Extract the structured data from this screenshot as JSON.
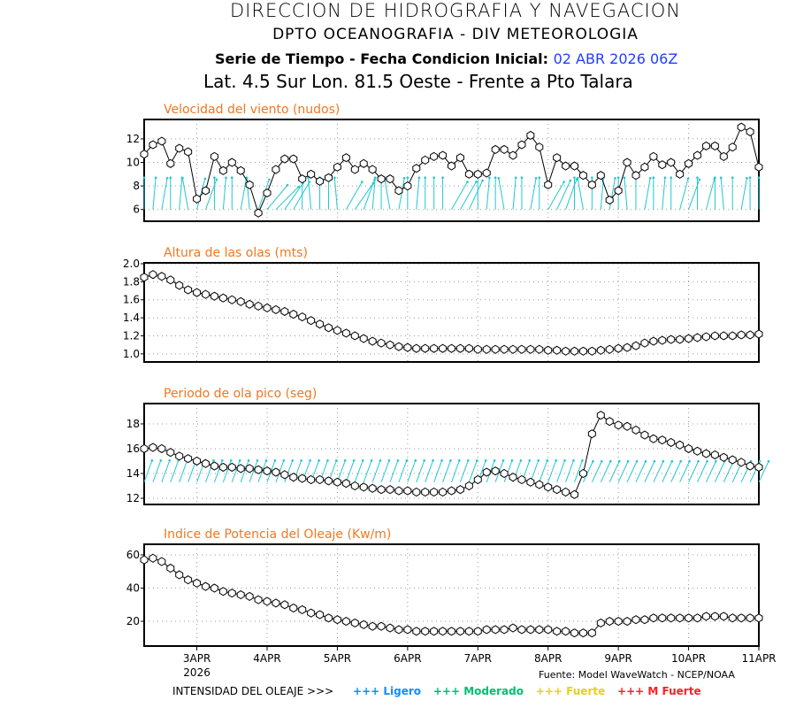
{
  "header": {
    "line1": "DIRECCION DE HIDROGRAFIA Y NAVEGACION",
    "line2": "DPTO OCEANOGRAFIA - DIV METEOROLOGIA",
    "line3_label": "Serie de Tiempo - Fecha Condicion Inicial:",
    "line3_date": "02 ABR 2026 06Z",
    "line4": "Lat. 4.5 Sur  Lon. 81.5 Oeste - Frente a Pto Talara"
  },
  "footer": {
    "source": "Fuente: Model WaveWatch - NCEP/NOAA",
    "legend_label": "INTENSIDAD DEL OLEAJE >>>",
    "legend": [
      {
        "label": "+++ Ligero",
        "color": "#0a90ff"
      },
      {
        "label": "+++ Moderado",
        "color": "#00c070"
      },
      {
        "label": "+++ Fuerte",
        "color": "#e6d020"
      },
      {
        "label": "+++ M Fuerte",
        "color": "#ff2020"
      }
    ]
  },
  "colors": {
    "title": "#f07820",
    "arrow": "#20c8d0",
    "line": "#000000"
  },
  "chart_data": [
    {
      "type": "line",
      "title": "Velocidad del viento (nudos)",
      "x_start": "2026-04-02 06Z",
      "x_step_hours": 3,
      "ylim": [
        5.0,
        13.65
      ],
      "yticks": [
        6,
        8,
        10,
        12
      ],
      "ytick_labels": [
        "6",
        "8",
        "10",
        "12"
      ],
      "values": [
        10.7,
        11.5,
        11.8,
        9.9,
        11.2,
        10.9,
        6.9,
        7.6,
        10.5,
        9.3,
        10.0,
        9.3,
        8.1,
        5.7,
        7.4,
        9.4,
        10.3,
        10.3,
        8.6,
        9.0,
        8.4,
        8.7,
        9.6,
        10.4,
        9.4,
        9.9,
        9.4,
        8.6,
        8.6,
        7.6,
        8.0,
        9.5,
        10.2,
        10.5,
        10.6,
        9.7,
        10.4,
        9.0,
        9.0,
        9.1,
        11.1,
        11.1,
        10.6,
        11.5,
        12.3,
        11.3,
        8.1,
        10.4,
        9.7,
        9.7,
        8.9,
        8.1,
        8.9,
        6.8,
        7.6,
        10.0,
        8.9,
        9.6,
        10.5,
        9.8,
        10.0,
        9.0,
        9.9,
        10.6,
        11.4,
        11.4,
        10.5,
        11.3,
        13.0,
        12.6,
        9.6
      ],
      "arrows": {
        "base": 6.0,
        "tilt_deg": [
          0,
          5,
          10,
          0,
          5,
          -10,
          15,
          20,
          0,
          5,
          0,
          10,
          -5,
          20,
          40,
          45,
          35,
          30,
          0,
          -5,
          0,
          0,
          -5,
          30,
          35,
          20,
          5,
          0,
          -10,
          10,
          0,
          5,
          0,
          0,
          0,
          30,
          30,
          25,
          0,
          5,
          0,
          -10,
          5,
          0,
          10,
          0,
          30,
          25,
          20,
          0,
          -10,
          0,
          5,
          10,
          0,
          -5,
          0,
          10,
          0,
          5,
          0,
          15,
          20,
          0,
          15,
          0,
          -5,
          0,
          10,
          0,
          0
        ]
      }
    },
    {
      "type": "line",
      "title": "Altura de las olas (mts)",
      "x_start": "2026-04-02 06Z",
      "x_step_hours": 3,
      "ylim": [
        0.91,
        2.01
      ],
      "yticks": [
        1.0,
        1.2,
        1.4,
        1.6,
        1.8,
        2.0
      ],
      "ytick_labels": [
        "1.0",
        "1.2",
        "1.4",
        "1.6",
        "1.8",
        "2.0"
      ],
      "values": [
        1.85,
        1.88,
        1.86,
        1.82,
        1.76,
        1.71,
        1.68,
        1.66,
        1.64,
        1.62,
        1.6,
        1.58,
        1.55,
        1.53,
        1.51,
        1.49,
        1.47,
        1.44,
        1.41,
        1.37,
        1.33,
        1.29,
        1.26,
        1.23,
        1.2,
        1.17,
        1.14,
        1.12,
        1.1,
        1.08,
        1.07,
        1.06,
        1.06,
        1.06,
        1.06,
        1.06,
        1.06,
        1.06,
        1.05,
        1.05,
        1.05,
        1.05,
        1.05,
        1.05,
        1.05,
        1.05,
        1.04,
        1.04,
        1.03,
        1.03,
        1.03,
        1.03,
        1.04,
        1.05,
        1.06,
        1.07,
        1.09,
        1.12,
        1.14,
        1.15,
        1.16,
        1.16,
        1.17,
        1.18,
        1.19,
        1.2,
        1.2,
        1.2,
        1.21,
        1.21,
        1.22
      ]
    },
    {
      "type": "line",
      "title": "Periodo de ola pico (seg)",
      "x_start": "2026-04-02 06Z",
      "x_step_hours": 3,
      "ylim": [
        11.5,
        19.64
      ],
      "yticks": [
        12,
        14,
        16,
        18
      ],
      "ytick_labels": [
        "12",
        "14",
        "16",
        "18"
      ],
      "values": [
        16.0,
        16.1,
        16.0,
        15.7,
        15.4,
        15.2,
        15.0,
        14.8,
        14.6,
        14.5,
        14.5,
        14.4,
        14.4,
        14.3,
        14.2,
        14.1,
        13.9,
        13.7,
        13.6,
        13.5,
        13.5,
        13.4,
        13.3,
        13.2,
        13.0,
        12.9,
        12.8,
        12.7,
        12.7,
        12.6,
        12.6,
        12.5,
        12.5,
        12.5,
        12.5,
        12.6,
        12.7,
        13.0,
        13.5,
        14.1,
        14.2,
        14.0,
        13.7,
        13.5,
        13.3,
        13.1,
        12.9,
        12.7,
        12.5,
        12.3,
        14.0,
        17.2,
        18.7,
        18.2,
        17.9,
        17.8,
        17.5,
        17.1,
        16.8,
        16.7,
        16.5,
        16.3,
        16.0,
        15.8,
        15.6,
        15.5,
        15.3,
        15.1,
        14.9,
        14.6,
        14.5
      ],
      "arrows": {
        "base": 13.3,
        "tilt_deg": [
          20,
          20,
          20,
          20,
          20,
          20,
          20,
          20,
          20,
          20,
          20,
          20,
          20,
          20,
          20,
          20,
          20,
          20,
          20,
          20,
          20,
          20,
          20,
          20,
          20,
          20,
          20,
          20,
          20,
          20,
          20,
          20,
          20,
          20,
          20,
          20,
          20,
          20,
          20,
          20,
          20,
          20,
          20,
          20,
          20,
          20,
          20,
          20,
          20,
          20,
          25,
          25,
          25,
          25,
          25,
          25,
          25,
          25,
          25,
          25,
          25,
          25,
          25,
          25,
          25,
          25,
          25,
          25,
          25,
          25,
          25
        ]
      }
    },
    {
      "type": "line",
      "title": "Indice de Potencia del Oleaje (Kw/m)",
      "x_start": "2026-04-02 06Z",
      "x_step_hours": 3,
      "ylim": [
        5.1,
        66.4
      ],
      "yticks": [
        20,
        40,
        60
      ],
      "ytick_labels": [
        "20",
        "40",
        "60"
      ],
      "values": [
        57,
        58,
        56,
        52,
        48,
        45,
        43,
        41,
        40,
        38,
        37,
        36,
        35,
        33,
        32,
        31,
        30,
        28,
        27,
        25,
        24,
        22,
        21,
        20,
        19,
        18,
        17,
        17,
        16,
        15,
        15,
        14,
        14,
        14,
        14,
        14,
        14,
        14,
        14,
        15,
        15,
        15,
        16,
        15,
        15,
        15,
        15,
        14,
        14,
        13,
        13,
        13,
        19,
        20,
        20,
        20,
        21,
        21,
        22,
        22,
        22,
        22,
        22,
        22,
        23,
        23,
        23,
        22,
        22,
        22,
        22
      ]
    }
  ],
  "x_axis": {
    "day_offsets": [
      0.75,
      1.75,
      2.75,
      3.75,
      4.75,
      5.75,
      6.75,
      7.75,
      8.75
    ],
    "labels": [
      "3APR",
      "4APR",
      "5APR",
      "6APR",
      "7APR",
      "8APR",
      "9APR",
      "10APR",
      "11APR"
    ],
    "year_label": "2026",
    "span_days": 8.75
  }
}
